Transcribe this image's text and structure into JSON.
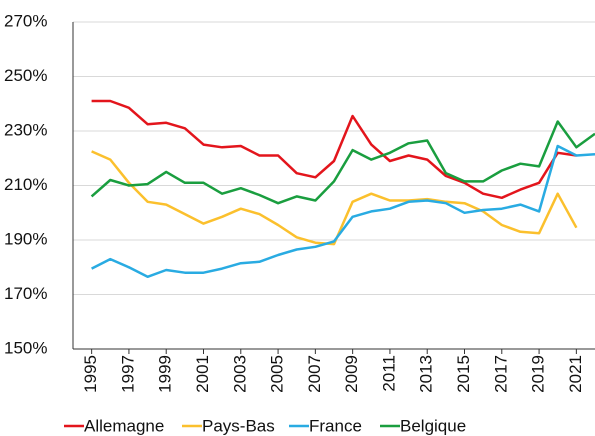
{
  "chart_data": {
    "type": "line",
    "x": [
      1995,
      1996,
      1997,
      1998,
      1999,
      2000,
      2001,
      2002,
      2003,
      2004,
      2005,
      2006,
      2007,
      2008,
      2009,
      2010,
      2011,
      2012,
      2013,
      2014,
      2015,
      2016,
      2017,
      2018,
      2019,
      2020,
      2021,
      2022
    ],
    "xlim": [
      1994,
      2022
    ],
    "xticks": [
      1995,
      1997,
      1999,
      2001,
      2003,
      2005,
      2007,
      2009,
      2011,
      2013,
      2015,
      2017,
      2019,
      2021
    ],
    "ylim": [
      150,
      270
    ],
    "yticks": [
      {
        "value": 150,
        "label": "150%"
      },
      {
        "value": 170,
        "label": "170%"
      },
      {
        "value": 190,
        "label": "190%"
      },
      {
        "value": 210,
        "label": "210%"
      },
      {
        "value": 230,
        "label": "230%"
      },
      {
        "value": 250,
        "label": "250%"
      },
      {
        "value": 270,
        "label": "270%"
      }
    ],
    "grid": true,
    "legend": "bottom",
    "series": [
      {
        "name": "Allemagne",
        "color": "#e3151c",
        "values": [
          241,
          241,
          238.5,
          232.5,
          233,
          231,
          225,
          224,
          224.5,
          221,
          221,
          214.5,
          213,
          219,
          235.5,
          225,
          219,
          221,
          219.5,
          213.5,
          211,
          207,
          205.5,
          208.5,
          211,
          222,
          221,
          null
        ]
      },
      {
        "name": "Pays-Bas",
        "color": "#fbc02d",
        "values": [
          222.5,
          219.5,
          211,
          204,
          203,
          199.5,
          196,
          198.5,
          201.5,
          199.5,
          195.5,
          191,
          189,
          188.5,
          204,
          207,
          204.5,
          204.5,
          205,
          204,
          203.5,
          200.5,
          195.5,
          193,
          192.5,
          207,
          194.5,
          null
        ]
      },
      {
        "name": "France",
        "color": "#29abe2",
        "values": [
          179.5,
          183,
          180,
          176.5,
          179,
          178,
          178,
          179.5,
          181.5,
          182,
          184.5,
          186.5,
          187.5,
          189.5,
          198.5,
          200.5,
          201.5,
          204,
          204.5,
          203.5,
          200,
          201,
          201.5,
          203,
          200.5,
          224.5,
          221,
          221.5
        ]
      },
      {
        "name": "Belgique",
        "color": "#1a9e3f",
        "values": [
          206,
          212,
          210,
          210.5,
          215,
          211,
          211,
          207,
          209,
          206.5,
          203.5,
          206,
          204.5,
          211.5,
          223,
          219.5,
          222,
          225.5,
          226.5,
          214.5,
          211.5,
          211.5,
          215.5,
          218,
          217,
          233.5,
          224,
          229
        ]
      }
    ]
  }
}
